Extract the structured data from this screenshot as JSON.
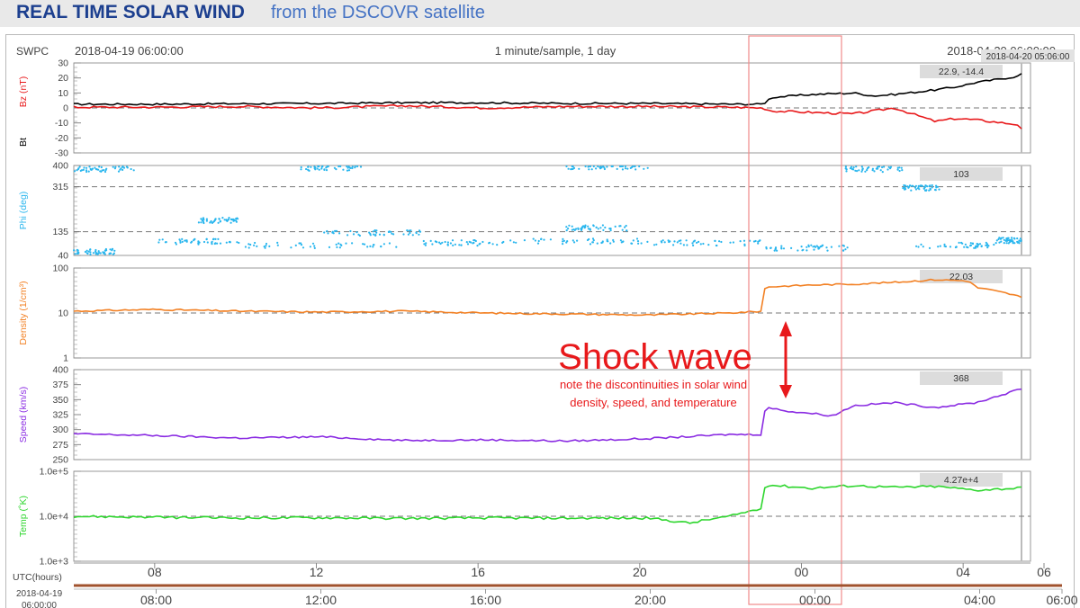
{
  "header": {
    "title": "REAL TIME SOLAR WIND",
    "subtitle": "from the DSCOVR satellite"
  },
  "chart_top": {
    "source": "SWPC",
    "start_time": "2018-04-19 06:00:00",
    "resolution": "1 minute/sample, 1 day",
    "end_time": "2018-04-20 06:00:00",
    "cursor_time": "2018-04-20 05:06:00"
  },
  "annotation": {
    "title": "Shock wave",
    "line1": "note the discontinuities in solar wind",
    "line2": "density, speed, and temperature"
  },
  "colors": {
    "bz": "#e8191b",
    "bt": "#000000",
    "phi": "#29b6ee",
    "density": "#f28023",
    "speed": "#8a2be2",
    "temp": "#2ed62e",
    "annotation": "#e8191b",
    "highlight_box": "#f08a8a",
    "range_bar": "#a0522d"
  },
  "chart_data": [
    {
      "type": "line",
      "panel": "magnetic",
      "ylabel_primary": "Bz (nT)",
      "ylabel_secondary": "Bt",
      "ylim": [
        -30,
        30
      ],
      "ticks": [
        "30",
        "20",
        "10",
        "0",
        "-10",
        "-20",
        "-30"
      ],
      "reference_lines": [
        0
      ],
      "readout": "22.9, -14.4",
      "x_hours": [
        0,
        2,
        4,
        6,
        8,
        10,
        12,
        14,
        16,
        16.8,
        17,
        18,
        19,
        19.5,
        20,
        21,
        21.5,
        22,
        23,
        23.1
      ],
      "series": [
        {
          "name": "Bt",
          "values": [
            2.5,
            2.5,
            2.8,
            3,
            3.5,
            3.5,
            3,
            3,
            2.5,
            2.5,
            7,
            9,
            10,
            8,
            9,
            12,
            14,
            17,
            21,
            22.9
          ]
        },
        {
          "name": "Bz",
          "values": [
            0.5,
            0.5,
            1,
            0,
            1.5,
            0,
            1,
            1,
            0.5,
            0,
            -2,
            -3,
            -4,
            -2,
            0,
            -9,
            -7,
            -8,
            -11,
            -14.4
          ]
        }
      ]
    },
    {
      "type": "scatter",
      "panel": "phi",
      "ylabel": "Phi (deg)",
      "ylim": [
        40,
        400
      ],
      "ticks": [
        "400",
        "315",
        "135",
        "40"
      ],
      "reference_lines": [
        315,
        135
      ],
      "readout": "103"
    },
    {
      "type": "line",
      "panel": "density",
      "ylabel": "Density (1/cm³)",
      "scale": "log",
      "ylim": [
        1,
        100
      ],
      "ticks": [
        "100",
        "10",
        "1"
      ],
      "reference_lines": [
        10
      ],
      "readout": "22.03",
      "x_hours": [
        0,
        2,
        4,
        6,
        8,
        10,
        12,
        14,
        16,
        16.8,
        16.85,
        18,
        19,
        20,
        21,
        21.8,
        22,
        23,
        23.1
      ],
      "values": [
        11,
        12,
        11,
        10.5,
        11,
        10,
        9.5,
        9,
        10,
        11,
        38,
        42,
        44,
        48,
        55,
        52,
        37,
        24,
        22.03
      ]
    },
    {
      "type": "line",
      "panel": "speed",
      "ylabel": "Speed (km/s)",
      "ylim": [
        250,
        400
      ],
      "ticks": [
        "400",
        "375",
        "350",
        "325",
        "300",
        "275",
        "250"
      ],
      "reference_lines": [],
      "readout": "368",
      "x_hours": [
        0,
        2,
        4,
        6,
        8,
        10,
        12,
        14,
        16,
        16.8,
        16.85,
        17.5,
        18,
        18.5,
        19,
        20,
        21,
        22,
        23.1
      ],
      "values": [
        293,
        290,
        286,
        288,
        282,
        283,
        281,
        285,
        292,
        292,
        337,
        330,
        327,
        323,
        340,
        345,
        337,
        345,
        368
      ]
    },
    {
      "type": "line",
      "panel": "temperature",
      "ylabel": "Temp (˚K)",
      "scale": "log",
      "ylim": [
        1000,
        100000
      ],
      "ticks": [
        "1.0e+5",
        "1.0e+4",
        "1.0e+3"
      ],
      "reference_lines": [
        10000
      ],
      "readout": "4.27e+4",
      "x_hours": [
        0,
        2,
        4,
        6,
        8,
        10,
        12,
        14,
        15,
        16,
        16.8,
        16.85,
        18,
        19,
        20,
        21,
        22,
        23.1
      ],
      "values": [
        10000,
        9500,
        9200,
        9300,
        9000,
        9200,
        9100,
        9100,
        7000,
        10000,
        15000,
        50000,
        42000,
        48000,
        44000,
        46000,
        38000,
        42700
      ]
    }
  ],
  "x_axis": {
    "label": "UTC(hours)",
    "start_hour": 6,
    "end_hour": 30,
    "tick_labels": [
      "08",
      "12",
      "16",
      "20",
      "00",
      "04",
      "06"
    ],
    "range_start_label_line1": "2018-04-19",
    "range_start_label_line2": "06:00:00",
    "range_tick_labels": [
      "08:00",
      "12:00",
      "16:00",
      "20:00",
      "00:00",
      "04:00",
      "06:00"
    ]
  }
}
